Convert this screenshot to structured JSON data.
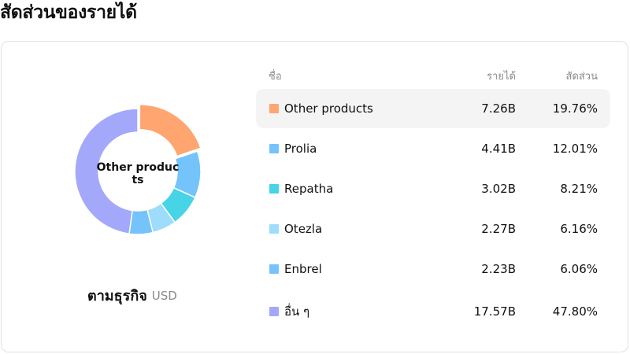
{
  "page": {
    "title": "สัดส่วนของรายได้"
  },
  "donut": {
    "center_label": "Other products",
    "caption": "ตามธุรกิจ",
    "unit": "USD"
  },
  "table": {
    "headers": {
      "name": "ชื่อ",
      "revenue": "รายได้",
      "share": "สัดส่วน"
    },
    "rows": [
      {
        "name": "Other products",
        "revenue": "7.26B",
        "share": "19.76%",
        "percent": 19.76,
        "color": "#ffa570",
        "active": true
      },
      {
        "name": "Prolia",
        "revenue": "4.41B",
        "share": "12.01%",
        "percent": 12.01,
        "color": "#74c3fb",
        "active": false
      },
      {
        "name": "Repatha",
        "revenue": "3.02B",
        "share": "8.21%",
        "percent": 8.21,
        "color": "#47d4e6",
        "active": false
      },
      {
        "name": "Otezla",
        "revenue": "2.27B",
        "share": "6.16%",
        "percent": 6.16,
        "color": "#9ddcfb",
        "active": false
      },
      {
        "name": "Enbrel",
        "revenue": "2.23B",
        "share": "6.06%",
        "percent": 6.06,
        "color": "#74c3fb",
        "active": false
      },
      {
        "name": "อื่น ๆ",
        "revenue": "17.57B",
        "share": "47.80%",
        "percent": 47.8,
        "color": "#a3a8fa",
        "active": false
      }
    ]
  }
}
